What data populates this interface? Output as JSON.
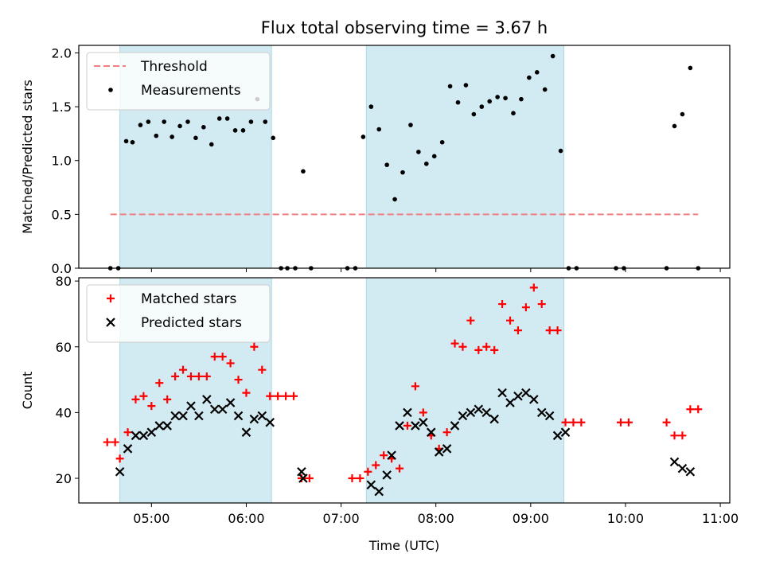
{
  "figure": {
    "title": "Flux total observing time = 3.67 h"
  },
  "chart_data": [
    {
      "type": "scatter",
      "title": "Flux total observing time = 3.67 h",
      "xlabel": "",
      "ylabel": "Matched/Predicted stars",
      "xlim": [
        "04:14",
        "11:06"
      ],
      "ylim": [
        0,
        2.07
      ],
      "yticks": [
        "0.0",
        "0.5",
        "1.0",
        "1.5",
        "2.0"
      ],
      "ytick_values": [
        0,
        0.5,
        1.0,
        1.5,
        2.0
      ],
      "grid": false,
      "legend_position": "upper-left",
      "shaded_spans": [
        [
          "04:40",
          "06:16"
        ],
        [
          "07:16",
          "09:21"
        ]
      ],
      "shade_color": "#add8e6",
      "threshold": {
        "name": "Threshold",
        "value": 0.5,
        "x_range": [
          "04:34",
          "10:46"
        ],
        "color": "#f08080",
        "style": "dashed"
      },
      "series": [
        {
          "name": "Measurements",
          "marker": "dot",
          "color": "#000000",
          "points": [
            [
              "04:34",
              0
            ],
            [
              "04:39",
              0
            ],
            [
              "04:44",
              1.18
            ],
            [
              "04:48",
              1.17
            ],
            [
              "04:53",
              1.33
            ],
            [
              "04:58",
              1.36
            ],
            [
              "05:03",
              1.23
            ],
            [
              "05:08",
              1.36
            ],
            [
              "05:13",
              1.22
            ],
            [
              "05:18",
              1.32
            ],
            [
              "05:23",
              1.36
            ],
            [
              "05:28",
              1.21
            ],
            [
              "05:33",
              1.31
            ],
            [
              "05:38",
              1.15
            ],
            [
              "05:43",
              1.39
            ],
            [
              "05:48",
              1.39
            ],
            [
              "05:53",
              1.28
            ],
            [
              "05:58",
              1.28
            ],
            [
              "06:03",
              1.36
            ],
            [
              "06:07",
              1.57
            ],
            [
              "06:12",
              1.36
            ],
            [
              "06:17",
              1.21
            ],
            [
              "06:22",
              0
            ],
            [
              "06:26",
              0
            ],
            [
              "06:31",
              0
            ],
            [
              "06:36",
              0.9
            ],
            [
              "06:41",
              0
            ],
            [
              "07:04",
              0
            ],
            [
              "07:09",
              0
            ],
            [
              "07:14",
              1.22
            ],
            [
              "07:19",
              1.5
            ],
            [
              "07:24",
              1.29
            ],
            [
              "07:29",
              0.96
            ],
            [
              "07:34",
              0.64
            ],
            [
              "07:39",
              0.89
            ],
            [
              "07:44",
              1.33
            ],
            [
              "07:49",
              1.08
            ],
            [
              "07:54",
              0.97
            ],
            [
              "07:59",
              1.04
            ],
            [
              "08:04",
              1.17
            ],
            [
              "08:09",
              1.69
            ],
            [
              "08:14",
              1.54
            ],
            [
              "08:19",
              1.7
            ],
            [
              "08:24",
              1.43
            ],
            [
              "08:29",
              1.5
            ],
            [
              "08:34",
              1.55
            ],
            [
              "08:39",
              1.59
            ],
            [
              "08:44",
              1.58
            ],
            [
              "08:49",
              1.44
            ],
            [
              "08:54",
              1.57
            ],
            [
              "08:59",
              1.77
            ],
            [
              "09:04",
              1.82
            ],
            [
              "09:09",
              1.66
            ],
            [
              "09:14",
              1.97
            ],
            [
              "09:19",
              1.09
            ],
            [
              "09:24",
              0
            ],
            [
              "09:29",
              0
            ],
            [
              "09:54",
              0
            ],
            [
              "09:59",
              0
            ],
            [
              "10:26",
              0
            ],
            [
              "10:31",
              1.32
            ],
            [
              "10:36",
              1.43
            ],
            [
              "10:41",
              1.86
            ],
            [
              "10:46",
              0
            ]
          ]
        }
      ]
    },
    {
      "type": "scatter",
      "title": "",
      "xlabel": "Time (UTC)",
      "ylabel": "Count",
      "xlim": [
        "04:14",
        "11:06"
      ],
      "ylim": [
        12.5,
        81
      ],
      "yticks": [
        "20",
        "40",
        "60",
        "80"
      ],
      "ytick_values": [
        20,
        40,
        60,
        80
      ],
      "xticks": [
        "05:00",
        "06:00",
        "07:00",
        "08:00",
        "09:00",
        "10:00",
        "11:00"
      ],
      "grid": false,
      "legend_position": "upper-left",
      "shaded_spans": [
        [
          "04:40",
          "06:16"
        ],
        [
          "07:16",
          "09:21"
        ]
      ],
      "shade_color": "#add8e6",
      "series": [
        {
          "name": "Matched stars",
          "marker": "plus",
          "color": "#ff0000",
          "points": [
            [
              "04:32",
              31
            ],
            [
              "04:37",
              31
            ],
            [
              "04:40",
              26
            ],
            [
              "04:45",
              34
            ],
            [
              "04:50",
              44
            ],
            [
              "04:55",
              45
            ],
            [
              "05:00",
              42
            ],
            [
              "05:05",
              49
            ],
            [
              "05:10",
              44
            ],
            [
              "05:15",
              51
            ],
            [
              "05:20",
              53
            ],
            [
              "05:25",
              51
            ],
            [
              "05:30",
              51
            ],
            [
              "05:35",
              51
            ],
            [
              "05:40",
              57
            ],
            [
              "05:45",
              57
            ],
            [
              "05:50",
              55
            ],
            [
              "05:55",
              50
            ],
            [
              "06:00",
              46
            ],
            [
              "06:05",
              60
            ],
            [
              "06:10",
              53
            ],
            [
              "06:15",
              45
            ],
            [
              "06:20",
              45
            ],
            [
              "06:25",
              45
            ],
            [
              "06:30",
              45
            ],
            [
              "06:35",
              20
            ],
            [
              "06:40",
              20
            ],
            [
              "07:07",
              20
            ],
            [
              "07:12",
              20
            ],
            [
              "07:17",
              22
            ],
            [
              "07:22",
              24
            ],
            [
              "07:27",
              27
            ],
            [
              "07:32",
              26
            ],
            [
              "07:37",
              23
            ],
            [
              "07:42",
              36
            ],
            [
              "07:47",
              48
            ],
            [
              "07:52",
              40
            ],
            [
              "07:57",
              33
            ],
            [
              "08:02",
              29
            ],
            [
              "08:07",
              34
            ],
            [
              "08:12",
              61
            ],
            [
              "08:17",
              60
            ],
            [
              "08:22",
              68
            ],
            [
              "08:27",
              59
            ],
            [
              "08:32",
              60
            ],
            [
              "08:37",
              59
            ],
            [
              "08:42",
              73
            ],
            [
              "08:47",
              68
            ],
            [
              "08:52",
              65
            ],
            [
              "08:57",
              72
            ],
            [
              "09:02",
              78
            ],
            [
              "09:07",
              73
            ],
            [
              "09:12",
              65
            ],
            [
              "09:17",
              65
            ],
            [
              "09:22",
              37
            ],
            [
              "09:27",
              37
            ],
            [
              "09:32",
              37
            ],
            [
              "09:57",
              37
            ],
            [
              "10:02",
              37
            ],
            [
              "10:26",
              37
            ],
            [
              "10:31",
              33
            ],
            [
              "10:36",
              33
            ],
            [
              "10:41",
              41
            ],
            [
              "10:46",
              41
            ]
          ]
        },
        {
          "name": "Predicted stars",
          "marker": "x",
          "color": "#000000",
          "points": [
            [
              "04:40",
              22
            ],
            [
              "04:45",
              29
            ],
            [
              "04:50",
              33
            ],
            [
              "04:55",
              33
            ],
            [
              "05:00",
              34
            ],
            [
              "05:05",
              36
            ],
            [
              "05:10",
              36
            ],
            [
              "05:15",
              39
            ],
            [
              "05:20",
              39
            ],
            [
              "05:25",
              42
            ],
            [
              "05:30",
              39
            ],
            [
              "05:35",
              44
            ],
            [
              "05:40",
              41
            ],
            [
              "05:45",
              41
            ],
            [
              "05:50",
              43
            ],
            [
              "05:55",
              39
            ],
            [
              "06:00",
              34
            ],
            [
              "06:05",
              38
            ],
            [
              "06:10",
              39
            ],
            [
              "06:15",
              37
            ],
            [
              "06:35",
              22
            ],
            [
              "06:36",
              20
            ],
            [
              "07:19",
              18
            ],
            [
              "07:24",
              16
            ],
            [
              "07:29",
              21
            ],
            [
              "07:32",
              27
            ],
            [
              "07:37",
              36
            ],
            [
              "07:42",
              40
            ],
            [
              "07:47",
              36
            ],
            [
              "07:52",
              37
            ],
            [
              "07:57",
              34
            ],
            [
              "08:02",
              28
            ],
            [
              "08:07",
              29
            ],
            [
              "08:12",
              36
            ],
            [
              "08:17",
              39
            ],
            [
              "08:22",
              40
            ],
            [
              "08:27",
              41
            ],
            [
              "08:32",
              40
            ],
            [
              "08:37",
              38
            ],
            [
              "08:42",
              46
            ],
            [
              "08:47",
              43
            ],
            [
              "08:52",
              45
            ],
            [
              "08:57",
              46
            ],
            [
              "09:02",
              44
            ],
            [
              "09:07",
              40
            ],
            [
              "09:12",
              39
            ],
            [
              "09:17",
              33
            ],
            [
              "09:22",
              34
            ],
            [
              "10:31",
              25
            ],
            [
              "10:36",
              23
            ],
            [
              "10:41",
              22
            ]
          ]
        }
      ]
    }
  ]
}
